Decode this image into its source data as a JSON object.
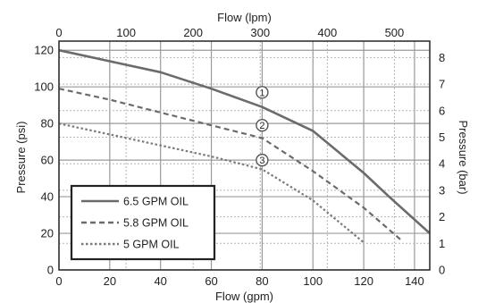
{
  "chart_data": {
    "type": "line",
    "x_bottom": {
      "label": "Flow (gpm)",
      "range": [
        0,
        146
      ],
      "ticks": [
        "0",
        "20",
        "40",
        "60",
        "80",
        "100",
        "120",
        "140"
      ],
      "tick_values": [
        0,
        20,
        40,
        60,
        80,
        100,
        120,
        140
      ]
    },
    "x_top": {
      "label": "Flow (lpm)",
      "range": [
        0,
        552.7
      ],
      "ticks": [
        "0",
        "100",
        "200",
        "300",
        "400",
        "500"
      ],
      "tick_values": [
        0,
        100,
        200,
        300,
        400,
        500
      ]
    },
    "y_left": {
      "label": "Pressure (psi)",
      "range": [
        0,
        125
      ],
      "ticks": [
        "0",
        "20",
        "40",
        "60",
        "80",
        "100",
        "120"
      ],
      "tick_values": [
        0,
        20,
        40,
        60,
        80,
        100,
        120
      ]
    },
    "y_right": {
      "label": "Pressure (bar)",
      "range": [
        0,
        8.62
      ],
      "ticks": [
        "0",
        "1",
        "2",
        "3",
        "4",
        "5",
        "6",
        "7",
        "8"
      ],
      "tick_values": [
        0,
        1,
        2,
        3,
        4,
        5,
        6,
        7,
        8
      ]
    },
    "grid": true,
    "legend": "bottom-left",
    "series": [
      {
        "name": "6.5 GPM OIL",
        "style": "solid",
        "color": "#6b6b6b",
        "x": [
          0,
          20,
          40,
          60,
          80,
          100,
          120,
          130,
          146
        ],
        "y": [
          120,
          114,
          108,
          99,
          89,
          76,
          53,
          40,
          20
        ]
      },
      {
        "name": "5.8 GPM OIL",
        "style": "dashed",
        "color": "#6b6b6b",
        "x": [
          0,
          20,
          40,
          60,
          80,
          100,
          120,
          135
        ],
        "y": [
          99,
          93,
          86,
          79,
          72,
          54,
          34,
          16
        ]
      },
      {
        "name": "5 GPM OIL",
        "style": "dotted",
        "color": "#7a7a7a",
        "x": [
          0,
          20,
          40,
          60,
          80,
          100,
          120
        ],
        "y": [
          80,
          74,
          68,
          62,
          55,
          38,
          15
        ]
      }
    ],
    "markers": [
      {
        "label": "1",
        "x": 80,
        "y": 97
      },
      {
        "label": "2",
        "x": 80,
        "y": 79
      },
      {
        "label": "3",
        "x": 80,
        "y": 60
      }
    ]
  }
}
